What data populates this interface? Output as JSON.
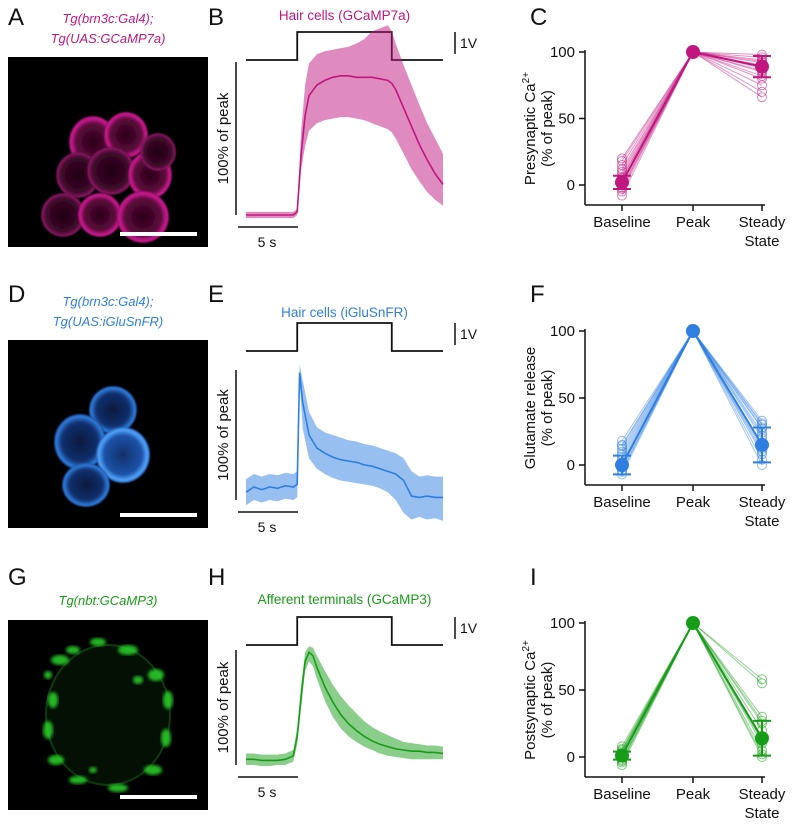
{
  "colors": {
    "magenta": "#c0177f",
    "blue": "#2f7fe0",
    "green": "#179c17",
    "black": "#111111"
  },
  "rows": [
    {
      "image": {
        "letter": "A",
        "label_line1": "Tg(brn3c:Gal4);",
        "label_line2": "Tg(UAS:GCaMP7a)",
        "content": "magenta-hair-cell-cluster"
      },
      "trace_panel": {
        "letter": "B",
        "title": "Hair cells (GCaMP7a)"
      },
      "summary_panel": {
        "letter": "C",
        "ylabel_line1": "Presynaptic Ca",
        "ylabel_sup": "2+",
        "ylabel_line2": "(% of peak)"
      },
      "color": "magenta"
    },
    {
      "image": {
        "letter": "D",
        "label_line1": "Tg(brn3c:Gal4);",
        "label_line2": "Tg(UAS:iGluSnFR)",
        "content": "blue-hair-cell-cluster"
      },
      "trace_panel": {
        "letter": "E",
        "title": "Hair cells (iGluSnFR)"
      },
      "summary_panel": {
        "letter": "F",
        "ylabel_line1": "Glutamate release",
        "ylabel_sup": "",
        "ylabel_line2": "(% of peak)"
      },
      "color": "blue"
    },
    {
      "image": {
        "letter": "G",
        "label_line1": "Tg(nbt:GCaMP3)",
        "label_line2": "",
        "content": "green-afferent-terminals"
      },
      "trace_panel": {
        "letter": "H",
        "title": "Afferent terminals (GCaMP3)"
      },
      "summary_panel": {
        "letter": "I",
        "ylabel_line1": "Postsynaptic Ca",
        "ylabel_sup": "2+",
        "ylabel_line2": "(% of peak)"
      },
      "color": "green"
    }
  ],
  "common": {
    "stim_label": "1V",
    "time_scale_label": "5 s",
    "trace_ylabel": "100% of peak",
    "yticks": [
      "0",
      "50",
      "100"
    ],
    "xcats": [
      "Baseline",
      "Peak",
      "Steady",
      "State"
    ]
  },
  "chart_data": [
    {
      "type": "line",
      "panel": "B",
      "title": "Hair cells (GCaMP7a)",
      "ylabel": "100% of peak",
      "xunit": "s",
      "stimulus": {
        "on_s": 6.5,
        "off_s": 18.5,
        "amplitude": "1V"
      },
      "x": [
        0,
        1,
        2,
        3,
        4,
        5,
        6,
        6.5,
        7,
        7.5,
        8,
        9,
        10,
        11,
        12,
        13,
        14,
        15,
        16,
        17,
        18,
        18.5,
        19,
        20,
        21,
        22,
        23,
        24,
        25
      ],
      "mean": [
        0,
        0,
        0,
        0,
        0,
        0,
        0,
        0.02,
        0.4,
        0.65,
        0.78,
        0.85,
        0.88,
        0.9,
        0.91,
        0.91,
        0.9,
        0.9,
        0.9,
        0.89,
        0.88,
        0.86,
        0.82,
        0.7,
        0.58,
        0.46,
        0.36,
        0.27,
        0.2
      ],
      "lower": [
        -0.02,
        -0.02,
        -0.02,
        -0.02,
        -0.02,
        -0.02,
        -0.02,
        0,
        0.3,
        0.45,
        0.55,
        0.6,
        0.62,
        0.63,
        0.64,
        0.64,
        0.63,
        0.62,
        0.6,
        0.58,
        0.56,
        0.54,
        0.5,
        0.4,
        0.3,
        0.22,
        0.15,
        0.1,
        0.06
      ],
      "upper": [
        0.02,
        0.02,
        0.02,
        0.02,
        0.02,
        0.02,
        0.02,
        0.04,
        0.55,
        0.85,
        0.99,
        1.05,
        1.07,
        1.08,
        1.09,
        1.1,
        1.12,
        1.15,
        1.2,
        1.22,
        1.24,
        1.2,
        1.12,
        0.98,
        0.85,
        0.72,
        0.6,
        0.5,
        0.4
      ]
    },
    {
      "type": "scatter",
      "panel": "C",
      "categories": [
        "Baseline",
        "Peak",
        "Steady State"
      ],
      "ylabel": "Presynaptic Ca2+ (% of peak)",
      "ylim": [
        -10,
        105
      ],
      "yticks": [
        0,
        50,
        100
      ],
      "mean": [
        2,
        100,
        89
      ],
      "sd": [
        5,
        0,
        8
      ],
      "individual": [
        [
          20,
          96
        ],
        [
          15,
          92
        ],
        [
          10,
          88
        ],
        [
          5,
          85
        ],
        [
          0,
          80
        ],
        [
          -3,
          75
        ],
        [
          -5,
          70
        ],
        [
          -8,
          66
        ],
        [
          8,
          94
        ],
        [
          3,
          90
        ],
        [
          12,
          86
        ],
        [
          -2,
          98
        ],
        [
          6,
          82
        ],
        [
          18,
          93
        ]
      ]
    },
    {
      "type": "line",
      "panel": "E",
      "title": "Hair cells (iGluSnFR)",
      "ylabel": "100% of peak",
      "xunit": "s",
      "stimulus": {
        "on_s": 6.5,
        "off_s": 18.5,
        "amplitude": "1V"
      },
      "x": [
        0,
        1,
        2,
        3,
        4,
        5,
        6,
        6.5,
        6.8,
        7.2,
        8,
        9,
        10,
        11,
        12,
        13,
        14,
        15,
        16,
        17,
        18,
        19,
        20,
        21,
        22,
        23,
        24,
        25
      ],
      "mean": [
        0.06,
        0.1,
        0.08,
        0.1,
        0.09,
        0.11,
        0.1,
        0.12,
        0.98,
        0.75,
        0.5,
        0.4,
        0.36,
        0.33,
        0.31,
        0.3,
        0.29,
        0.27,
        0.26,
        0.24,
        0.22,
        0.2,
        0.15,
        0.03,
        0.02,
        0.03,
        0.02,
        0.02
      ],
      "lower": [
        -0.04,
        0,
        -0.02,
        0,
        -0.01,
        0.01,
        0,
        0.02,
        0.92,
        0.55,
        0.32,
        0.24,
        0.2,
        0.17,
        0.15,
        0.14,
        0.13,
        0.12,
        0.11,
        0.09,
        0.06,
        0.0,
        -0.1,
        -0.15,
        -0.13,
        -0.15,
        -0.14,
        -0.16
      ],
      "upper": [
        0.16,
        0.2,
        0.18,
        0.2,
        0.19,
        0.21,
        0.2,
        0.22,
        1.04,
        0.92,
        0.68,
        0.56,
        0.52,
        0.5,
        0.48,
        0.46,
        0.45,
        0.43,
        0.42,
        0.4,
        0.38,
        0.36,
        0.32,
        0.22,
        0.18,
        0.19,
        0.18,
        0.18
      ]
    },
    {
      "type": "scatter",
      "panel": "F",
      "categories": [
        "Baseline",
        "Peak",
        "Steady State"
      ],
      "ylabel": "Glutamate release (% of peak)",
      "ylim": [
        -10,
        105
      ],
      "yticks": [
        0,
        50,
        100
      ],
      "mean": [
        0,
        100,
        15
      ],
      "sd": [
        7,
        0,
        13
      ],
      "individual": [
        [
          18,
          33
        ],
        [
          12,
          30
        ],
        [
          8,
          27
        ],
        [
          4,
          24
        ],
        [
          0,
          20
        ],
        [
          -4,
          16
        ],
        [
          -7,
          12
        ],
        [
          10,
          8
        ],
        [
          15,
          4
        ],
        [
          -2,
          0
        ],
        [
          6,
          28
        ],
        [
          -5,
          22
        ],
        [
          2,
          10
        ],
        [
          14,
          31
        ]
      ]
    },
    {
      "type": "line",
      "panel": "H",
      "title": "Afferent terminals (GCaMP3)",
      "ylabel": "100% of peak",
      "xunit": "s",
      "stimulus": {
        "on_s": 6.5,
        "off_s": 18.5,
        "amplitude": "1V"
      },
      "x": [
        0,
        1,
        2,
        3,
        4,
        5,
        6,
        6.5,
        7,
        7.5,
        8,
        8.5,
        9,
        10,
        11,
        12,
        13,
        14,
        15,
        16,
        17,
        18,
        19,
        20,
        21,
        22,
        23,
        24,
        25
      ],
      "mean": [
        0.05,
        0.05,
        0.04,
        0.04,
        0.04,
        0.05,
        0.08,
        0.25,
        0.6,
        0.9,
        0.98,
        0.95,
        0.85,
        0.68,
        0.55,
        0.44,
        0.36,
        0.3,
        0.25,
        0.21,
        0.18,
        0.16,
        0.14,
        0.13,
        0.12,
        0.12,
        0.11,
        0.11,
        0.1
      ],
      "lower": [
        0.0,
        0.0,
        -0.01,
        -0.01,
        0.0,
        0.0,
        0.03,
        0.18,
        0.5,
        0.82,
        0.9,
        0.86,
        0.75,
        0.56,
        0.42,
        0.32,
        0.25,
        0.2,
        0.16,
        0.13,
        0.1,
        0.08,
        0.07,
        0.06,
        0.05,
        0.05,
        0.05,
        0.05,
        0.05
      ],
      "upper": [
        0.1,
        0.1,
        0.09,
        0.09,
        0.09,
        0.1,
        0.13,
        0.32,
        0.7,
        0.98,
        1.03,
        1.02,
        0.95,
        0.82,
        0.7,
        0.6,
        0.52,
        0.45,
        0.38,
        0.33,
        0.29,
        0.26,
        0.23,
        0.2,
        0.19,
        0.18,
        0.17,
        0.17,
        0.16
      ]
    },
    {
      "type": "scatter",
      "panel": "I",
      "categories": [
        "Baseline",
        "Peak",
        "Steady State"
      ],
      "ylabel": "Postsynaptic Ca2+ (% of peak)",
      "ylim": [
        -10,
        105
      ],
      "yticks": [
        0,
        50,
        100
      ],
      "mean": [
        1,
        100,
        14
      ],
      "sd": [
        3,
        0,
        13
      ],
      "individual": [
        [
          8,
          58
        ],
        [
          5,
          55
        ],
        [
          3,
          30
        ],
        [
          0,
          25
        ],
        [
          -3,
          20
        ],
        [
          -6,
          15
        ],
        [
          2,
          10
        ],
        [
          4,
          5
        ],
        [
          -2,
          2
        ],
        [
          1,
          0
        ],
        [
          6,
          27
        ],
        [
          -4,
          12
        ]
      ]
    }
  ]
}
